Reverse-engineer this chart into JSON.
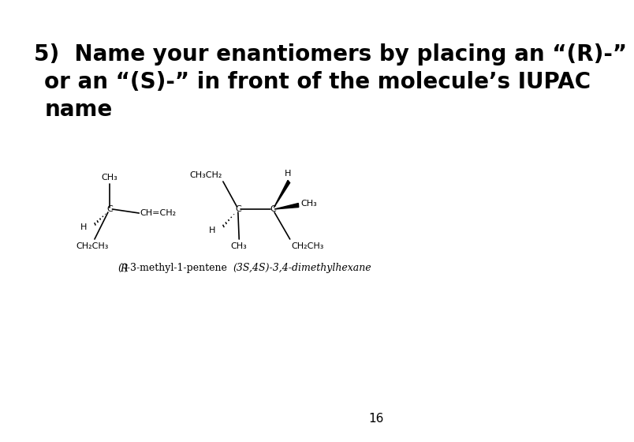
{
  "background_color": "#ffffff",
  "title_line1": "5)  Name your enantiomers by placing an “(R)-”",
  "title_line2": "or an “(S)-” in front of the molecule’s IUPAC",
  "title_line3": "name",
  "label1_prefix": "(R)",
  "label1_suffix": "-3-methyl-1-pentene",
  "label2_prefix": "(3S,4S)",
  "label2_suffix": "-3,4-dimethylhexane",
  "page_number": "16",
  "title_fontsize": 20,
  "chem_fontsize": 8,
  "label_fontsize": 9,
  "page_fontsize": 11
}
